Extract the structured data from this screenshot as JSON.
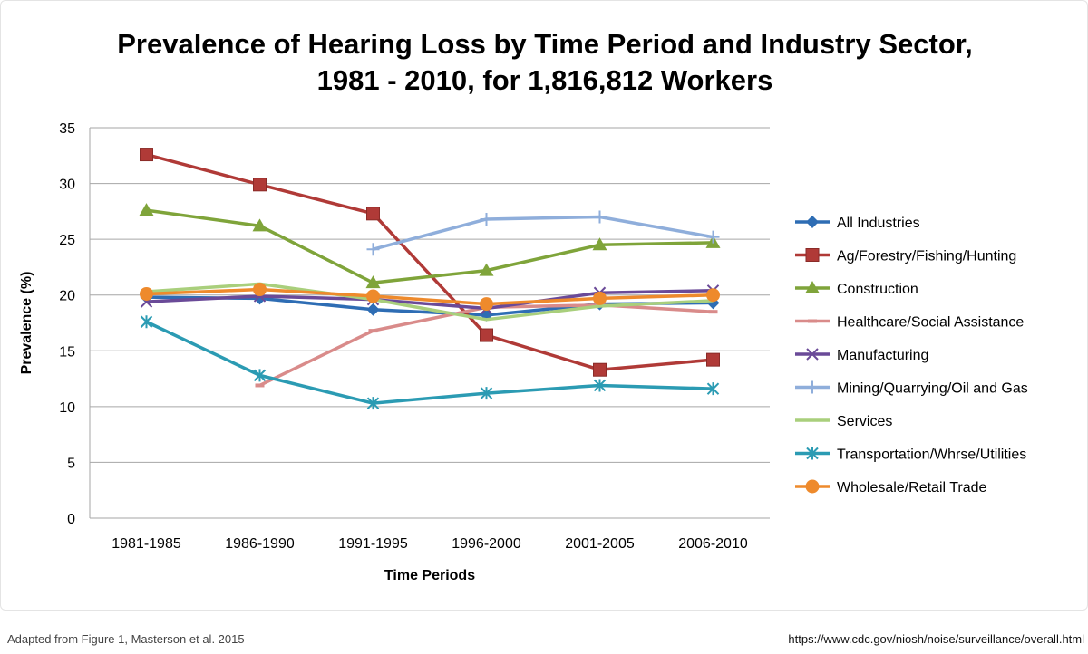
{
  "footer": {
    "source": "Adapted from Figure 1, Masterson et al. 2015",
    "url": "https://www.cdc.gov/niosh/noise/surveillance/overall.html"
  },
  "chart_data": {
    "type": "line",
    "title": [
      "Prevalence of Hearing Loss by Time Period and Industry Sector,",
      "1981 - 2010, for 1,816,812 Workers"
    ],
    "xlabel": "Time Periods",
    "ylabel": "Prevalence (%)",
    "ylim": [
      0,
      35
    ],
    "yticks": [
      0,
      5,
      10,
      15,
      20,
      25,
      30,
      35
    ],
    "grid": "horizontal",
    "legend": "right",
    "categories": [
      "1981-1985",
      "1986-1990",
      "1991-1995",
      "1996-2000",
      "2001-2005",
      "2006-2010"
    ],
    "series": [
      {
        "name": "All Industries",
        "color": "#2e6db4",
        "marker": "diamond",
        "values": [
          19.8,
          19.7,
          18.7,
          18.2,
          19.2,
          19.3
        ]
      },
      {
        "name": "Ag/Forestry/Fishing/Hunting",
        "color": "#b03a37",
        "marker": "square",
        "values": [
          32.6,
          29.9,
          27.3,
          16.4,
          13.3,
          14.2
        ]
      },
      {
        "name": "Construction",
        "color": "#7fa43a",
        "marker": "triangle",
        "values": [
          27.6,
          26.2,
          21.1,
          22.2,
          24.5,
          24.7
        ]
      },
      {
        "name": "Healthcare/Social Assistance",
        "color": "#d98b8a",
        "marker": "dash",
        "values": [
          null,
          11.9,
          16.8,
          18.9,
          19.1,
          18.5
        ]
      },
      {
        "name": "Manufacturing",
        "color": "#6a4a98",
        "marker": "x",
        "values": [
          19.4,
          19.9,
          19.6,
          18.8,
          20.2,
          20.4
        ]
      },
      {
        "name": "Mining/Quarrying/Oil and Gas",
        "color": "#8faedb",
        "marker": "plus",
        "values": [
          null,
          null,
          24.1,
          26.8,
          27.0,
          25.2
        ]
      },
      {
        "name": "Services",
        "color": "#a9cf7c",
        "marker": "none",
        "values": [
          20.3,
          21.0,
          19.6,
          17.8,
          19.0,
          19.5
        ]
      },
      {
        "name": "Transportation/Whrse/Utilities",
        "color": "#2b9bb3",
        "marker": "star",
        "values": [
          17.6,
          12.8,
          10.3,
          11.2,
          11.9,
          11.6
        ]
      },
      {
        "name": "Wholesale/Retail Trade",
        "color": "#ee8a2c",
        "marker": "circle",
        "values": [
          20.1,
          20.5,
          19.9,
          19.2,
          19.7,
          20.0
        ]
      }
    ]
  }
}
